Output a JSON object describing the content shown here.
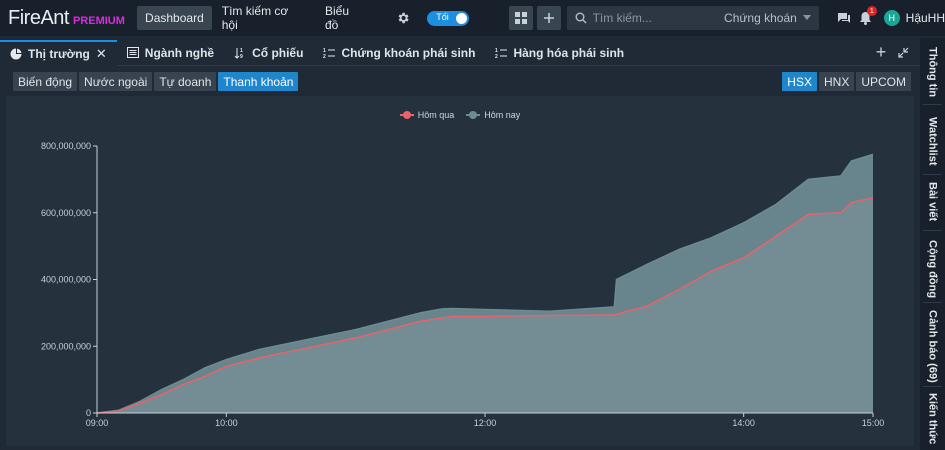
{
  "app": {
    "logo_main": "FireAnt",
    "logo_badge": "PREMIUM"
  },
  "topnav": {
    "items": [
      "Dashboard",
      "Tìm kiếm cơ hội",
      "Biểu đồ"
    ],
    "active": "Dashboard",
    "theme_toggle_label": "Tối",
    "search_placeholder": "Tìm kiếm...",
    "search_scope": "Chứng khoán",
    "notification_count": "1",
    "avatar_initial": "H",
    "username": "HậuHH"
  },
  "tabs": [
    {
      "label": "Thị trường",
      "icon": "pie-chart-icon",
      "active": true
    },
    {
      "label": "Ngành nghề",
      "icon": "list-icon"
    },
    {
      "label": "Cổ phiếu",
      "icon": "sort-icon"
    },
    {
      "label": "Chứng khoán phái sinh",
      "icon": "numbered-list-icon"
    },
    {
      "label": "Hàng hóa phái sinh",
      "icon": "numbered-list-icon"
    }
  ],
  "subtabs": {
    "items": [
      "Biến động",
      "Nước ngoài",
      "Tự doanh",
      "Thanh khoản"
    ],
    "active": "Thanh khoản"
  },
  "exchanges": {
    "items": [
      "HSX",
      "HNX",
      "UPCOM"
    ],
    "active": "HSX"
  },
  "right_sidebar": [
    "Thông tin",
    "Watchlist",
    "Bài viết",
    "Cộng đồng",
    "Cảnh báo (69)",
    "Kiến thức"
  ],
  "colors": {
    "accent": "#1d8fe0",
    "yesterday": "#e8636a",
    "today": "#6c8c92",
    "today_fill": "#74939a"
  },
  "chart_data": {
    "type": "area",
    "x_ticks": [
      "09:00",
      "10:00",
      "12:00",
      "14:00",
      "15:00"
    ],
    "y_ticks": [
      "0",
      "200,000,000",
      "400,000,000",
      "600,000,000",
      "800,000,000"
    ],
    "ylim": [
      0,
      800000000
    ],
    "series": [
      {
        "name": "Hôm qua",
        "points": [
          [
            "09:00",
            0
          ],
          [
            "09:10",
            5000000
          ],
          [
            "09:20",
            30000000
          ],
          [
            "09:30",
            55000000
          ],
          [
            "09:40",
            85000000
          ],
          [
            "09:50",
            110000000
          ],
          [
            "10:00",
            140000000
          ],
          [
            "10:15",
            165000000
          ],
          [
            "10:30",
            185000000
          ],
          [
            "10:45",
            205000000
          ],
          [
            "11:00",
            225000000
          ],
          [
            "11:15",
            250000000
          ],
          [
            "11:30",
            275000000
          ],
          [
            "11:45",
            290000000
          ],
          [
            "12:00",
            290000000
          ],
          [
            "12:30",
            292000000
          ],
          [
            "13:00",
            294000000
          ],
          [
            "13:15",
            320000000
          ],
          [
            "13:30",
            370000000
          ],
          [
            "13:45",
            425000000
          ],
          [
            "14:00",
            465000000
          ],
          [
            "14:15",
            530000000
          ],
          [
            "14:30",
            595000000
          ],
          [
            "14:45",
            600000000
          ],
          [
            "14:50",
            630000000
          ],
          [
            "15:00",
            645000000
          ]
        ]
      },
      {
        "name": "Hôm nay",
        "points": [
          [
            "09:00",
            0
          ],
          [
            "09:10",
            8000000
          ],
          [
            "09:20",
            35000000
          ],
          [
            "09:30",
            70000000
          ],
          [
            "09:40",
            100000000
          ],
          [
            "09:50",
            135000000
          ],
          [
            "10:00",
            160000000
          ],
          [
            "10:15",
            190000000
          ],
          [
            "10:30",
            210000000
          ],
          [
            "10:45",
            230000000
          ],
          [
            "11:00",
            250000000
          ],
          [
            "11:15",
            275000000
          ],
          [
            "11:30",
            300000000
          ],
          [
            "11:40",
            312000000
          ],
          [
            "11:45",
            313000000
          ],
          [
            "12:00",
            310000000
          ],
          [
            "12:30",
            305000000
          ],
          [
            "13:00",
            318000000
          ],
          [
            "13:01",
            400000000
          ],
          [
            "13:15",
            445000000
          ],
          [
            "13:30",
            490000000
          ],
          [
            "13:45",
            525000000
          ],
          [
            "14:00",
            570000000
          ],
          [
            "14:15",
            625000000
          ],
          [
            "14:30",
            700000000
          ],
          [
            "14:45",
            710000000
          ],
          [
            "14:50",
            755000000
          ],
          [
            "15:00",
            775000000
          ]
        ]
      }
    ],
    "grid": false,
    "legend": "top-center"
  }
}
